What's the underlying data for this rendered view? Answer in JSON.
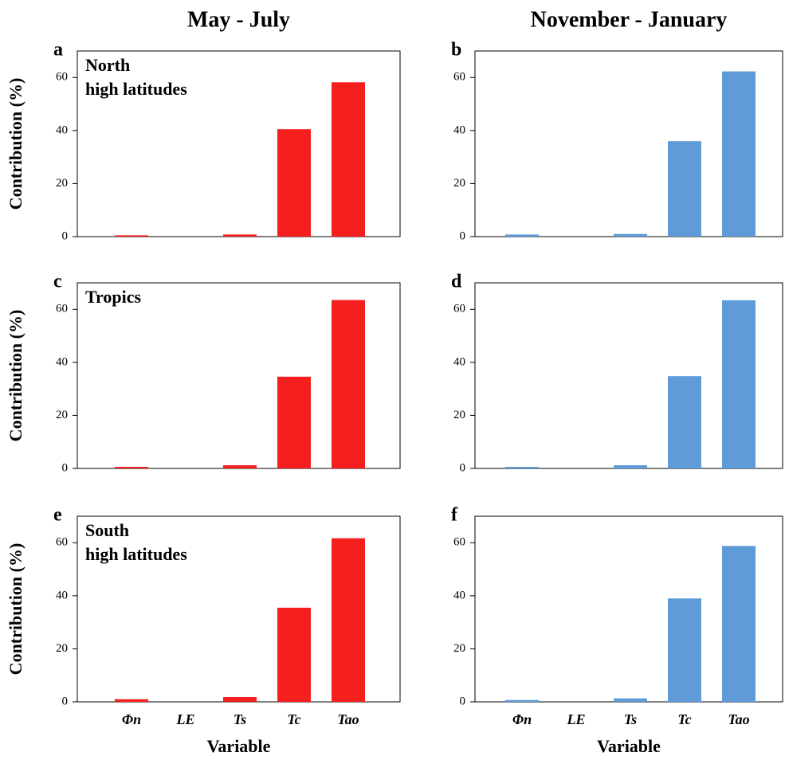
{
  "chart_data": [
    {
      "type": "bar",
      "title": "May - July",
      "panel_label": "a",
      "annotation": [
        "North",
        "high latitudes"
      ],
      "ylabel": "Contribution (%)",
      "categories": [
        null,
        null,
        null,
        null,
        null
      ],
      "values": [
        0.5,
        0,
        0.8,
        40.5,
        58.2
      ],
      "color": "#f5201e",
      "ylim": [
        0,
        70
      ],
      "yticks": [
        0,
        20,
        40,
        60
      ]
    },
    {
      "type": "bar",
      "title": "November - January",
      "panel_label": "b",
      "categories": [
        null,
        null,
        null,
        null,
        null
      ],
      "values": [
        0.8,
        0,
        1.0,
        36,
        62.3
      ],
      "color": "#5f9bd8",
      "ylim": [
        0,
        70
      ],
      "yticks": [
        0,
        20,
        40,
        60
      ]
    },
    {
      "type": "bar",
      "panel_label": "c",
      "annotation": [
        "Tropics"
      ],
      "ylabel": "Contribution (%)",
      "categories": [
        null,
        null,
        null,
        null,
        null
      ],
      "values": [
        0.6,
        0,
        1.2,
        34.6,
        63.5
      ],
      "color": "#f5201e",
      "ylim": [
        0,
        70
      ],
      "yticks": [
        0,
        20,
        40,
        60
      ]
    },
    {
      "type": "bar",
      "panel_label": "d",
      "categories": [
        null,
        null,
        null,
        null,
        null
      ],
      "values": [
        0.6,
        0,
        1.2,
        34.8,
        63.4
      ],
      "color": "#5f9bd8",
      "ylim": [
        0,
        70
      ],
      "yticks": [
        0,
        20,
        40,
        60
      ]
    },
    {
      "type": "bar",
      "panel_label": "e",
      "annotation": [
        "South",
        "high latitudes"
      ],
      "ylabel": "Contribution (%)",
      "xlabel": "Variable",
      "categories": [
        "Φn",
        "LE",
        "Ts",
        "Tc",
        "Tao"
      ],
      "values": [
        1.0,
        0,
        1.8,
        35.5,
        61.7
      ],
      "color": "#f5201e",
      "ylim": [
        0,
        70
      ],
      "yticks": [
        0,
        20,
        40,
        60
      ]
    },
    {
      "type": "bar",
      "panel_label": "f",
      "xlabel": "Variable",
      "categories": [
        "Φn",
        "LE",
        "Ts",
        "Tc",
        "Tao"
      ],
      "values": [
        0.7,
        0,
        1.3,
        39,
        58.8
      ],
      "color": "#5f9bd8",
      "ylim": [
        0,
        70
      ],
      "yticks": [
        0,
        20,
        40,
        60
      ]
    }
  ]
}
